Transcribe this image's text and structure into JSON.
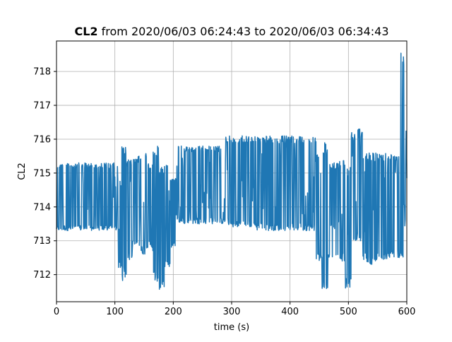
{
  "chart_data": {
    "type": "line",
    "title": {
      "bold_part": "CL2",
      "rest": " from 2020/06/03 06:24:43 to 2020/06/03 06:34:43"
    },
    "xlabel": "time (s)",
    "ylabel": "CL2",
    "xlim": [
      0,
      600
    ],
    "ylim": [
      711.2,
      718.9
    ],
    "xticks": [
      0,
      100,
      200,
      300,
      400,
      500,
      600
    ],
    "yticks": [
      712,
      713,
      714,
      715,
      716,
      717,
      718
    ],
    "grid": true,
    "series": [
      {
        "color": "#1f77b4",
        "segments": [
          {
            "x0": 0,
            "x1": 105,
            "low": 713.3,
            "high": 715.3
          },
          {
            "x0": 105,
            "x1": 112,
            "low": 712.2,
            "high": 714.8
          },
          {
            "x0": 112,
            "x1": 120,
            "low": 711.8,
            "high": 715.8
          },
          {
            "x0": 120,
            "x1": 130,
            "low": 712.4,
            "high": 715.4
          },
          {
            "x0": 130,
            "x1": 145,
            "low": 712.8,
            "high": 715.5
          },
          {
            "x0": 145,
            "x1": 155,
            "low": 712.6,
            "high": 715.6
          },
          {
            "x0": 155,
            "x1": 165,
            "low": 712.8,
            "high": 715.3
          },
          {
            "x0": 165,
            "x1": 175,
            "low": 711.8,
            "high": 715.8
          },
          {
            "x0": 175,
            "x1": 185,
            "low": 711.5,
            "high": 715.2
          },
          {
            "x0": 185,
            "x1": 195,
            "low": 712.2,
            "high": 715.3
          },
          {
            "x0": 195,
            "x1": 205,
            "low": 712.8,
            "high": 714.9
          },
          {
            "x0": 205,
            "x1": 290,
            "low": 713.5,
            "high": 715.8
          },
          {
            "x0": 290,
            "x1": 340,
            "low": 713.4,
            "high": 716.1
          },
          {
            "x0": 340,
            "x1": 445,
            "low": 713.3,
            "high": 716.1
          },
          {
            "x0": 445,
            "x1": 455,
            "low": 712.4,
            "high": 715.6
          },
          {
            "x0": 455,
            "x1": 465,
            "low": 711.5,
            "high": 715.9
          },
          {
            "x0": 465,
            "x1": 485,
            "low": 712.5,
            "high": 715.3
          },
          {
            "x0": 485,
            "x1": 495,
            "low": 712.4,
            "high": 715.4
          },
          {
            "x0": 495,
            "x1": 505,
            "low": 711.6,
            "high": 715.2
          },
          {
            "x0": 505,
            "x1": 515,
            "low": 713.0,
            "high": 716.2
          },
          {
            "x0": 515,
            "x1": 525,
            "low": 713.0,
            "high": 716.3
          },
          {
            "x0": 525,
            "x1": 545,
            "low": 712.3,
            "high": 715.6
          },
          {
            "x0": 545,
            "x1": 570,
            "low": 712.4,
            "high": 715.6
          },
          {
            "x0": 570,
            "x1": 590,
            "low": 712.5,
            "high": 715.6
          },
          {
            "x0": 590,
            "x1": 596,
            "low": 712.4,
            "high": 718.6
          },
          {
            "x0": 596,
            "x1": 600,
            "low": 713.4,
            "high": 716.3
          }
        ]
      }
    ]
  }
}
